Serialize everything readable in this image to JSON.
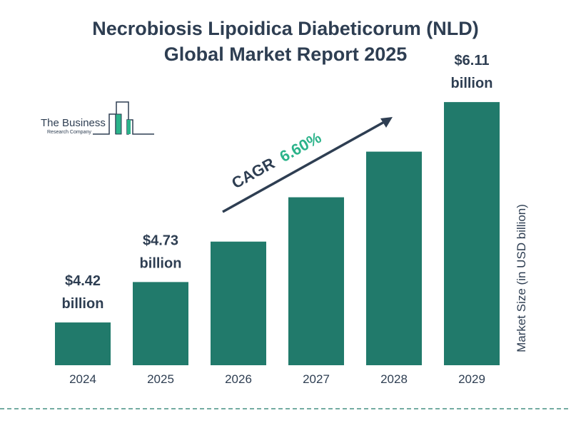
{
  "title_line1": "Necrobiosis Lipoidica Diabeticorum (NLD)",
  "title_line2": "Global Market Report 2025",
  "logo": {
    "line1": "The Business",
    "line2": "Research Company"
  },
  "colors": {
    "bar": "#217a6b",
    "text": "#2e3e52",
    "cagr_value": "#2bb38a",
    "logo_accent": "#2bb38a"
  },
  "chart_data": {
    "type": "bar",
    "categories": [
      "2024",
      "2025",
      "2026",
      "2027",
      "2028",
      "2029"
    ],
    "values": [
      4.42,
      4.73,
      5.04,
      5.38,
      5.73,
      6.11
    ],
    "data_labels": [
      {
        "index": 0,
        "value": "$4.42",
        "unit": "billion"
      },
      {
        "index": 1,
        "value": "$4.73",
        "unit": "billion"
      },
      {
        "index": 5,
        "value": "$6.11",
        "unit": "billion"
      }
    ],
    "ylabel": "Market Size (in USD billion)",
    "xlabel": "",
    "grid": false,
    "annotation": {
      "label": "CAGR",
      "value": "6.60%"
    }
  }
}
